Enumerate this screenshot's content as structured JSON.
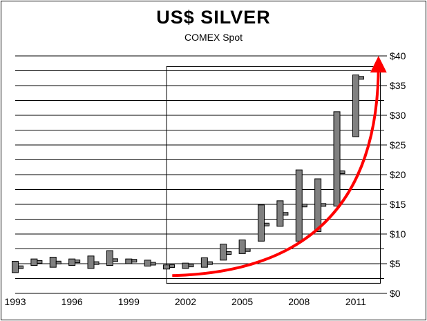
{
  "chart_data": {
    "type": "candlestick",
    "title": "US$ SILVER",
    "subtitle": "COMEX Spot",
    "xlabel": "",
    "ylabel": "",
    "x_range": [
      1993,
      2012.5
    ],
    "x_ticks": [
      "1993",
      "1996",
      "1999",
      "2002",
      "2005",
      "2008",
      "2011"
    ],
    "ylim": [
      0,
      40
    ],
    "y_ticks": [
      "$0",
      "$5",
      "$10",
      "$15",
      "$20",
      "$25",
      "$30",
      "$35",
      "$40"
    ],
    "y_axis_side": "right",
    "grid": true,
    "legend": "none",
    "colors": {
      "box": "#808080",
      "arrow": "#ff0000",
      "grid": "#000000"
    },
    "annotations": [
      "rectangle highlighting 2001-2012 period",
      "red curved arrow showing upward trend"
    ],
    "series": [
      {
        "year": 1993,
        "high": 5.4,
        "low": 3.5,
        "close": 4.4
      },
      {
        "year": 1994,
        "high": 5.8,
        "low": 4.7,
        "close": 5.3
      },
      {
        "year": 1995,
        "high": 6.1,
        "low": 4.4,
        "close": 5.2
      },
      {
        "year": 1996,
        "high": 5.8,
        "low": 4.7,
        "close": 5.4
      },
      {
        "year": 1997,
        "high": 6.3,
        "low": 4.2,
        "close": 5.1
      },
      {
        "year": 1998,
        "high": 7.2,
        "low": 4.7,
        "close": 5.6
      },
      {
        "year": 1999,
        "high": 5.8,
        "low": 5.0,
        "close": 5.5
      },
      {
        "year": 2000,
        "high": 5.6,
        "low": 4.6,
        "close": 5.0
      },
      {
        "year": 2001,
        "high": 4.8,
        "low": 4.1,
        "close": 4.6
      },
      {
        "year": 2002,
        "high": 5.1,
        "low": 4.2,
        "close": 4.7
      },
      {
        "year": 2003,
        "high": 6.0,
        "low": 4.4,
        "close": 5.1
      },
      {
        "year": 2004,
        "high": 8.3,
        "low": 5.6,
        "close": 6.8
      },
      {
        "year": 2005,
        "high": 9.0,
        "low": 6.7,
        "close": 7.3
      },
      {
        "year": 2006,
        "high": 14.9,
        "low": 8.8,
        "close": 11.6
      },
      {
        "year": 2007,
        "high": 15.6,
        "low": 11.3,
        "close": 13.4
      },
      {
        "year": 2008,
        "high": 20.8,
        "low": 8.8,
        "close": 14.8
      },
      {
        "year": 2009,
        "high": 19.3,
        "low": 10.4,
        "close": 14.9
      },
      {
        "year": 2010,
        "high": 30.6,
        "low": 14.7,
        "close": 20.4
      },
      {
        "year": 2011,
        "high": 36.8,
        "low": 26.4,
        "close": 36.3
      }
    ]
  }
}
